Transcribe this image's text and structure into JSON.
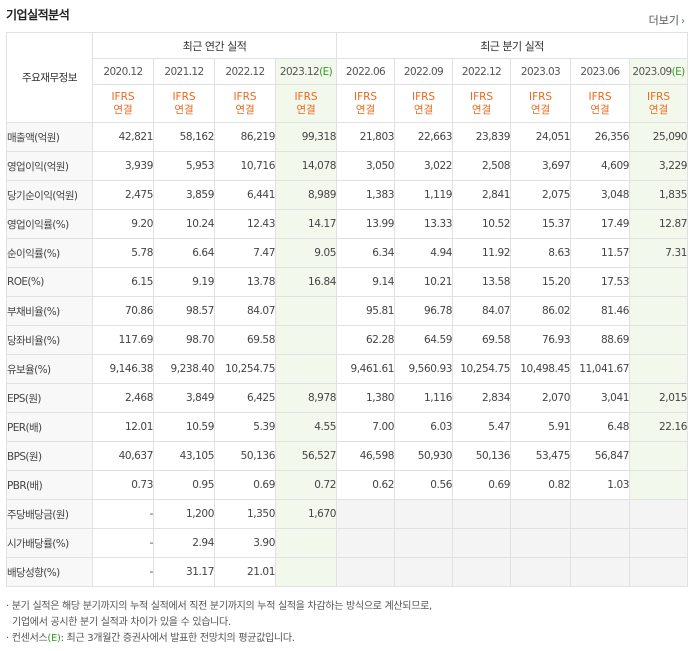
{
  "title": "기업실적분석",
  "more": "더보기",
  "header": {
    "corner": "주요재무정보",
    "annual_group": "최근 연간 실적",
    "quarter_group": "최근 분기 실적",
    "annual_periods": [
      "2020.12",
      "2021.12",
      "2022.12",
      "2023.12"
    ],
    "annual_est_mark": "(E)",
    "quarter_periods": [
      "2022.06",
      "2022.09",
      "2022.12",
      "2023.03",
      "2023.06",
      "2023.09"
    ],
    "quarter_est_mark": "(E)",
    "ifrs": "IFRS",
    "consol": "연결"
  },
  "rows": [
    {
      "label": "매출액(억원)",
      "values": [
        "42,821",
        "58,162",
        "86,219",
        "99,318",
        "21,803",
        "22,663",
        "23,839",
        "24,051",
        "26,356",
        "25,090"
      ]
    },
    {
      "label": "영업이익(억원)",
      "values": [
        "3,939",
        "5,953",
        "10,716",
        "14,078",
        "3,050",
        "3,022",
        "2,508",
        "3,697",
        "4,609",
        "3,229"
      ]
    },
    {
      "label": "당기순이익(억원)",
      "values": [
        "2,475",
        "3,859",
        "6,441",
        "8,989",
        "1,383",
        "1,119",
        "2,841",
        "2,075",
        "3,048",
        "1,835"
      ]
    },
    {
      "label": "영업이익률(%)",
      "values": [
        "9.20",
        "10.24",
        "12.43",
        "14.17",
        "13.99",
        "13.33",
        "10.52",
        "15.37",
        "17.49",
        "12.87"
      ]
    },
    {
      "label": "순이익률(%)",
      "values": [
        "5.78",
        "6.64",
        "7.47",
        "9.05",
        "6.34",
        "4.94",
        "11.92",
        "8.63",
        "11.57",
        "7.31"
      ]
    },
    {
      "label": "ROE(%)",
      "values": [
        "6.15",
        "9.19",
        "13.78",
        "16.84",
        "9.14",
        "10.21",
        "13.58",
        "15.20",
        "17.53",
        ""
      ]
    },
    {
      "label": "부채비율(%)",
      "values": [
        "70.86",
        "98.57",
        "84.07",
        "",
        "95.81",
        "96.78",
        "84.07",
        "86.02",
        "81.46",
        ""
      ]
    },
    {
      "label": "당좌비율(%)",
      "values": [
        "117.69",
        "98.70",
        "69.58",
        "",
        "62.28",
        "64.59",
        "69.58",
        "76.93",
        "88.69",
        ""
      ]
    },
    {
      "label": "유보율(%)",
      "values": [
        "9,146.38",
        "9,238.40",
        "10,254.75",
        "",
        "9,461.61",
        "9,560.93",
        "10,254.75",
        "10,498.45",
        "11,041.67",
        ""
      ]
    },
    {
      "label": "EPS(원)",
      "values": [
        "2,468",
        "3,849",
        "6,425",
        "8,978",
        "1,380",
        "1,116",
        "2,834",
        "2,070",
        "3,041",
        "2,015"
      ]
    },
    {
      "label": "PER(배)",
      "values": [
        "12.01",
        "10.59",
        "5.39",
        "4.55",
        "7.00",
        "6.03",
        "5.47",
        "5.91",
        "6.48",
        "22.16"
      ]
    },
    {
      "label": "BPS(원)",
      "values": [
        "40,637",
        "43,105",
        "50,136",
        "56,527",
        "46,598",
        "50,930",
        "50,136",
        "53,475",
        "56,847",
        ""
      ]
    },
    {
      "label": "PBR(배)",
      "values": [
        "0.73",
        "0.95",
        "0.69",
        "0.72",
        "0.62",
        "0.56",
        "0.69",
        "0.82",
        "1.03",
        ""
      ]
    },
    {
      "label": "주당배당금(원)",
      "values": [
        "-",
        "1,200",
        "1,350",
        "1,670"
      ]
    },
    {
      "label": "시가배당률(%)",
      "values": [
        "-",
        "2.94",
        "3.90",
        ""
      ]
    },
    {
      "label": "배당성향(%)",
      "values": [
        "-",
        "31.17",
        "21.01",
        ""
      ]
    }
  ],
  "notes": {
    "line1": "분기 실적은 해당 분기까지의 누적 실적에서 직전 분기까지의 누적 실적을 차감하는 방식으로 계산되므로,",
    "line2": "기업에서 공시한 분기 실적과 차이가 있을 수 있습니다.",
    "line3_pre": "컨센서스",
    "line3_mark": "(E)",
    "line3_post": ": 최근 3개월간 증권사에서 발표한 전망치의 평균값입니다."
  }
}
